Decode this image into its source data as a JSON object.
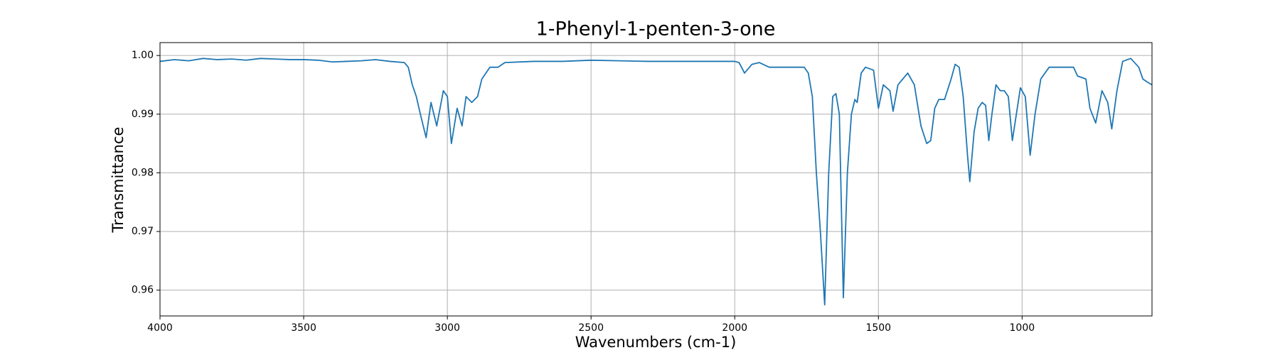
{
  "chart_data": {
    "type": "line",
    "title": "1-Phenyl-1-penten-3-one",
    "xlabel": "Wavenumbers (cm-1)",
    "ylabel": "Transmittance",
    "xlim": [
      4000,
      548
    ],
    "ylim": [
      0.9556,
      1.0022
    ],
    "xticks": [
      4000,
      3500,
      3000,
      2500,
      2000,
      1500,
      1000
    ],
    "yticks": [
      0.96,
      0.97,
      0.98,
      0.99,
      {
        "value": 1.0,
        "label": "1.00"
      }
    ],
    "x_reversed": true,
    "grid": true,
    "series": [
      {
        "name": "1-Phenyl-1-penten-3-one",
        "color": "#1f77b4",
        "x": [
          4000,
          3950,
          3900,
          3850,
          3800,
          3750,
          3700,
          3650,
          3600,
          3550,
          3500,
          3450,
          3400,
          3350,
          3300,
          3250,
          3200,
          3150,
          3136,
          3122,
          3108,
          3094,
          3074,
          3057,
          3037,
          3014,
          3000,
          2986,
          2966,
          2949,
          2935,
          2915,
          2895,
          2880,
          2852,
          2824,
          2800,
          2700,
          2600,
          2500,
          2400,
          2300,
          2200,
          2100,
          2000,
          1985,
          1966,
          1940,
          1915,
          1880,
          1830,
          1790,
          1758,
          1744,
          1730,
          1716,
          1702,
          1687,
          1673,
          1659,
          1648,
          1636,
          1622,
          1608,
          1594,
          1582,
          1574,
          1560,
          1545,
          1517,
          1500,
          1483,
          1460,
          1449,
          1432,
          1398,
          1375,
          1352,
          1332,
          1318,
          1304,
          1290,
          1270,
          1247,
          1233,
          1219,
          1205,
          1190,
          1182,
          1167,
          1153,
          1139,
          1127,
          1116,
          1105,
          1091,
          1076,
          1062,
          1048,
          1034,
          1020,
          1006,
          989,
          972,
          955,
          935,
          906,
          864,
          821,
          807,
          778,
          764,
          744,
          722,
          702,
          688,
          670,
          650,
          622,
          594,
          580,
          565,
          548
        ],
        "values": [
          0.999,
          0.9993,
          0.9991,
          0.9995,
          0.9993,
          0.9994,
          0.9992,
          0.9995,
          0.9994,
          0.9993,
          0.9993,
          0.9992,
          0.9989,
          0.999,
          0.9991,
          0.9993,
          0.999,
          0.9988,
          0.998,
          0.995,
          0.993,
          0.99,
          0.986,
          0.992,
          0.988,
          0.994,
          0.993,
          0.985,
          0.991,
          0.988,
          0.993,
          0.992,
          0.993,
          0.996,
          0.998,
          0.998,
          0.9988,
          0.999,
          0.999,
          0.9992,
          0.9991,
          0.999,
          0.999,
          0.999,
          0.999,
          0.9988,
          0.997,
          0.9985,
          0.9988,
          0.998,
          0.998,
          0.998,
          0.998,
          0.997,
          0.993,
          0.98,
          0.97,
          0.9575,
          0.98,
          0.993,
          0.9935,
          0.99,
          0.9587,
          0.98,
          0.99,
          0.9925,
          0.992,
          0.997,
          0.998,
          0.9975,
          0.991,
          0.995,
          0.994,
          0.9905,
          0.995,
          0.997,
          0.995,
          0.988,
          0.985,
          0.9855,
          0.991,
          0.9925,
          0.9925,
          0.996,
          0.9985,
          0.998,
          0.993,
          0.983,
          0.9785,
          0.987,
          0.991,
          0.992,
          0.9915,
          0.9855,
          0.99,
          0.995,
          0.994,
          0.994,
          0.993,
          0.9855,
          0.99,
          0.9945,
          0.993,
          0.983,
          0.99,
          0.996,
          0.998,
          0.998,
          0.998,
          0.9965,
          0.996,
          0.991,
          0.9885,
          0.994,
          0.992,
          0.9875,
          0.994,
          0.999,
          0.9995,
          0.998,
          0.996,
          0.9955,
          0.995
        ]
      }
    ]
  }
}
